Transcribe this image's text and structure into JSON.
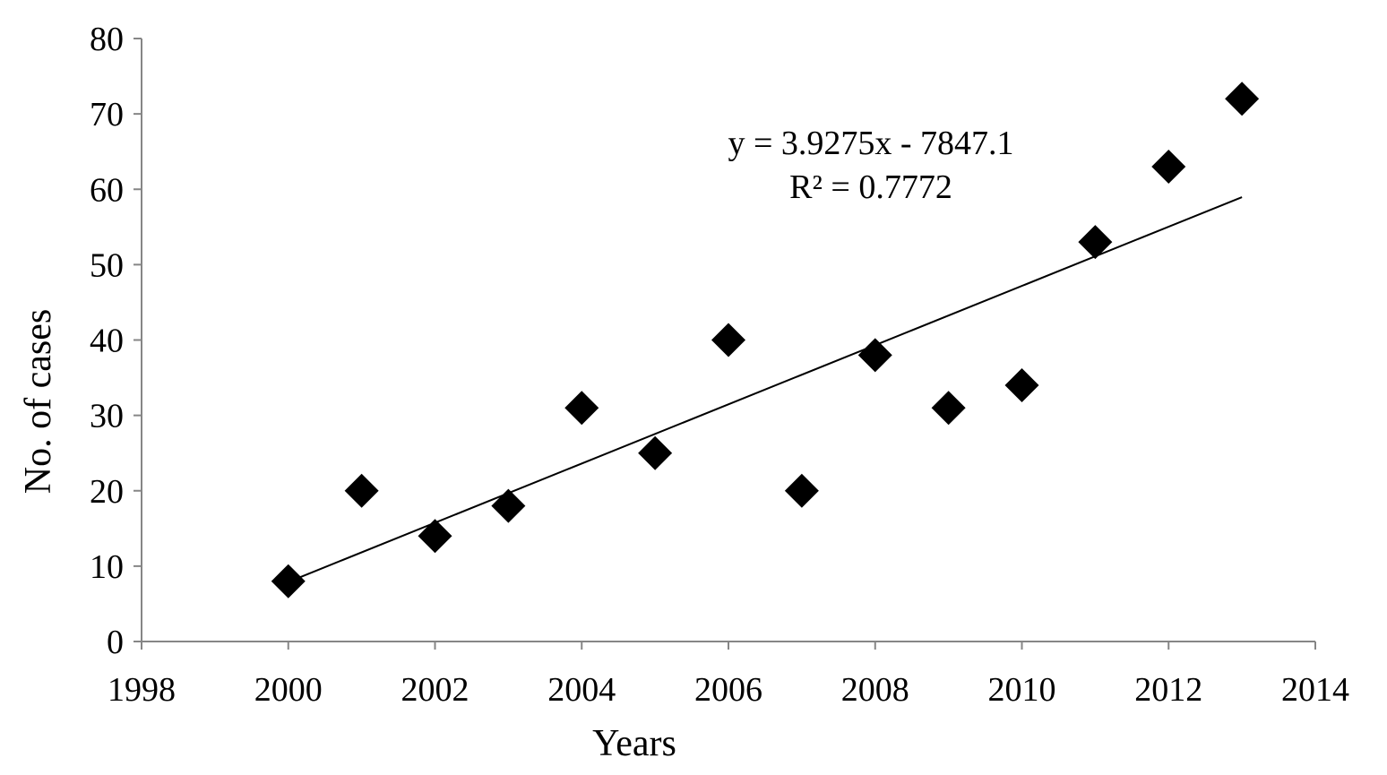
{
  "chart_data": {
    "type": "scatter",
    "xlabel": "Years",
    "ylabel": "No. of cases",
    "xlim": [
      1998,
      2014
    ],
    "ylim": [
      0,
      80
    ],
    "x_ticks": [
      1998,
      2000,
      2002,
      2004,
      2006,
      2008,
      2010,
      2012,
      2014
    ],
    "y_ticks": [
      0,
      10,
      20,
      30,
      40,
      50,
      60,
      70,
      80
    ],
    "grid": false,
    "legend": "none",
    "marker": "diamond",
    "marker_color": "#000000",
    "points": [
      {
        "x": 2000,
        "y": 8
      },
      {
        "x": 2001,
        "y": 20
      },
      {
        "x": 2002,
        "y": 14
      },
      {
        "x": 2003,
        "y": 18
      },
      {
        "x": 2004,
        "y": 31
      },
      {
        "x": 2005,
        "y": 25
      },
      {
        "x": 2006,
        "y": 40
      },
      {
        "x": 2007,
        "y": 20
      },
      {
        "x": 2008,
        "y": 38
      },
      {
        "x": 2009,
        "y": 31
      },
      {
        "x": 2010,
        "y": 34
      },
      {
        "x": 2011,
        "y": 53
      },
      {
        "x": 2012,
        "y": 63
      },
      {
        "x": 2013,
        "y": 72
      }
    ],
    "trendline": {
      "type": "linear",
      "slope": 3.9275,
      "intercept": -7847.1,
      "x_range": [
        2000,
        2013
      ],
      "equation_text": "y = 3.9275x - 7847.1",
      "r2_text": "R² = 0.7772"
    }
  }
}
